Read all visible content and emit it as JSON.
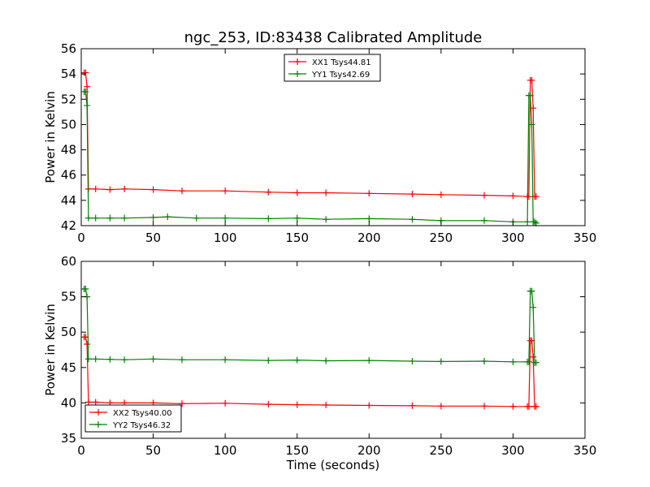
{
  "figure": {
    "background": "#ffffff"
  },
  "chart_data": [
    {
      "type": "line",
      "title": "ngc_253, ID:83438 Calibrated Amplitude",
      "xlabel": "",
      "ylabel": "Power in Kelvin",
      "xlim": [
        0,
        350
      ],
      "ylim": [
        42,
        56
      ],
      "xticks": [
        0,
        50,
        100,
        150,
        200,
        250,
        300,
        350
      ],
      "yticks": [
        42,
        44,
        46,
        48,
        50,
        52,
        54,
        56
      ],
      "grid": false,
      "legend": {
        "placement": "top-center",
        "entries": [
          "XX1 Tsys44.81",
          "YY1 Tsys42.69"
        ]
      },
      "series": [
        {
          "name": "XX1 Tsys44.81",
          "color": "#ff0000",
          "x": [
            2,
            3,
            4,
            5,
            10,
            20,
            30,
            50,
            70,
            100,
            130,
            150,
            170,
            200,
            230,
            250,
            280,
            300,
            310,
            311,
            312,
            313,
            314,
            315,
            316
          ],
          "y": [
            54.1,
            54.1,
            53.0,
            44.9,
            44.9,
            44.85,
            44.9,
            44.85,
            44.75,
            44.75,
            44.65,
            44.6,
            44.6,
            44.55,
            44.5,
            44.45,
            44.4,
            44.35,
            44.3,
            44.3,
            53.5,
            53.5,
            51.3,
            44.3,
            44.3
          ]
        },
        {
          "name": "YY1 Tsys42.69",
          "color": "#008000",
          "x": [
            2,
            3,
            4,
            5,
            10,
            20,
            30,
            50,
            60,
            80,
            100,
            130,
            150,
            170,
            200,
            230,
            250,
            280,
            300,
            310,
            311,
            312,
            313,
            314,
            315,
            316
          ],
          "y": [
            52.6,
            52.6,
            51.5,
            42.6,
            42.6,
            42.6,
            42.6,
            42.65,
            42.7,
            42.6,
            42.6,
            42.55,
            42.6,
            42.5,
            42.55,
            42.5,
            42.4,
            42.4,
            42.3,
            42.3,
            52.3,
            52.3,
            50.0,
            42.3,
            42.3,
            42.2
          ]
        }
      ]
    },
    {
      "type": "line",
      "title": "",
      "xlabel": "Time (seconds)",
      "ylabel": "Power in Kelvin",
      "xlim": [
        0,
        350
      ],
      "ylim": [
        35,
        60
      ],
      "xticks": [
        0,
        50,
        100,
        150,
        200,
        250,
        300,
        350
      ],
      "yticks": [
        35,
        40,
        45,
        50,
        55,
        60
      ],
      "grid": false,
      "legend": {
        "placement": "bottom-left",
        "entries": [
          "XX2 Tsys40.00",
          "YY2 Tsys46.32"
        ]
      },
      "series": [
        {
          "name": "XX2 Tsys40.00",
          "color": "#ff0000",
          "x": [
            2,
            3,
            4,
            5,
            10,
            20,
            30,
            50,
            70,
            100,
            130,
            150,
            170,
            200,
            230,
            250,
            280,
            300,
            310,
            311,
            312,
            313,
            314,
            315,
            316
          ],
          "y": [
            49.3,
            49.3,
            48.3,
            40.1,
            40.1,
            40.0,
            40.0,
            40.0,
            39.9,
            39.95,
            39.8,
            39.75,
            39.7,
            39.65,
            39.6,
            39.55,
            39.55,
            39.5,
            39.5,
            39.5,
            48.8,
            48.8,
            46.5,
            39.5,
            39.5
          ]
        },
        {
          "name": "YY2 Tsys46.32",
          "color": "#008000",
          "x": [
            2,
            3,
            4,
            5,
            10,
            20,
            30,
            50,
            70,
            100,
            130,
            150,
            170,
            200,
            230,
            250,
            280,
            300,
            310,
            311,
            312,
            313,
            314,
            315,
            316
          ],
          "y": [
            56.1,
            56.1,
            55.0,
            46.2,
            46.2,
            46.15,
            46.1,
            46.2,
            46.1,
            46.1,
            46.0,
            46.05,
            45.95,
            46.0,
            45.9,
            45.85,
            45.9,
            45.8,
            45.8,
            45.8,
            55.8,
            55.8,
            53.5,
            45.7,
            45.7
          ]
        }
      ]
    }
  ]
}
